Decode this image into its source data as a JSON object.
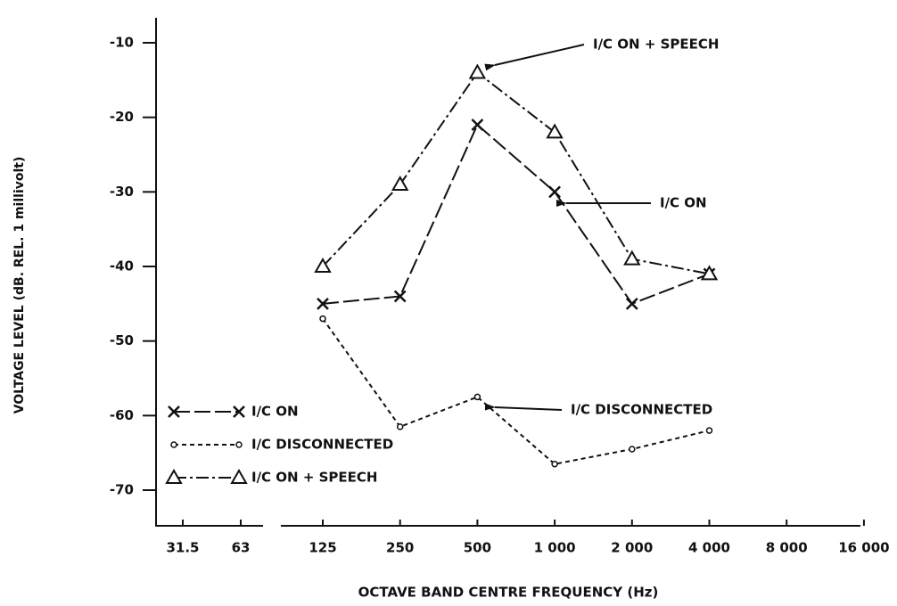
{
  "chart_data": {
    "type": "line",
    "xlabel": "OCTAVE BAND CENTRE FREQUENCY (Hz)",
    "ylabel": "VOLTAGE LEVEL (dB. REL. 1 millivolt)",
    "categories": [
      "31.5",
      "63",
      "125",
      "250",
      "500",
      "1 000",
      "2 000",
      "4 000",
      "8 000",
      "16 000"
    ],
    "series": [
      {
        "name": "I/C ON",
        "color": "#111111",
        "values": [
          null,
          null,
          -45,
          -44,
          -21,
          -30,
          -45,
          -41,
          null,
          null
        ]
      },
      {
        "name": "I/C DISCONNECTED",
        "color": "#111111",
        "values": [
          null,
          null,
          -47,
          -61.5,
          -57.5,
          -66.5,
          -64.5,
          -62,
          null,
          null
        ]
      },
      {
        "name": "I/C ON + SPEECH",
        "color": "#111111",
        "values": [
          null,
          null,
          -40,
          -29,
          -14,
          -22,
          -39,
          -41,
          null,
          null
        ]
      }
    ],
    "annotations": [
      "I/C ON + SPEECH",
      "I/C ON",
      "I/C DISCONNECTED"
    ],
    "ylim": [
      -75,
      -10
    ],
    "yticks": [
      -10,
      -20,
      -30,
      -40,
      -50,
      -60,
      -70
    ],
    "legend": "lower left"
  }
}
